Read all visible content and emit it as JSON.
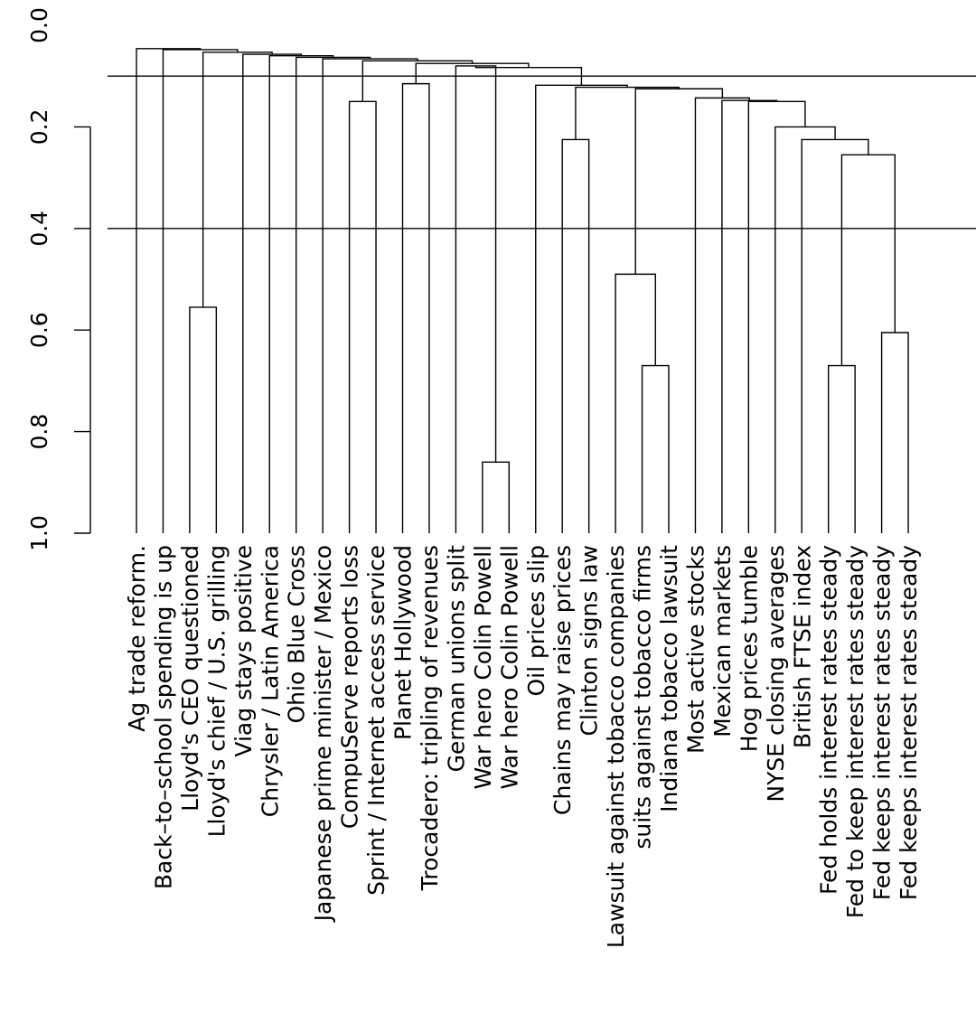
{
  "chart_data": {
    "type": "dendrogram",
    "title": "",
    "xlabel": "",
    "ylabel": "",
    "ylim": [
      0.0,
      1.0
    ],
    "y_inverted": true,
    "yticks": [
      0.0,
      0.2,
      0.4,
      0.6,
      0.8,
      1.0
    ],
    "ytick_labels": [
      "0.0",
      "0.2",
      "0.4",
      "0.6",
      "0.8",
      "1.0"
    ],
    "reference_lines": [
      0.1,
      0.4
    ],
    "leaves": [
      "Ag trade reform.",
      "Back–to–school spending is up",
      "Lloyd's CEO questioned",
      "Lloyd's chief / U.S. grilling",
      "Viag stays positive",
      "Chrysler / Latin America",
      "Ohio Blue Cross",
      "Japanese prime minister / Mexico",
      "CompuServe reports loss",
      "Sprint / Internet access service",
      "Planet Hollywood",
      "Trocadero: tripling of revenues",
      "German unions split",
      "War hero Colin Powell",
      "War hero Colin Powell",
      "Oil prices slip",
      "Chains may raise prices",
      "Clinton signs law",
      "Lawsuit against tobacco companies",
      "suits against tobacco firms",
      "Indiana tobacco lawsuit",
      "Most active stocks",
      "Mexican markets",
      "Hog prices tumble",
      "NYSE closing averages",
      "British FTSE index",
      "Fed holds interest rates steady",
      "Fed to keep interest rates steady",
      "Fed keeps interest rates steady",
      "Fed keeps interest rates steady"
    ],
    "merges": [
      {
        "id": "m1",
        "left": 2,
        "right": 3,
        "height": 0.555
      },
      {
        "id": "m2",
        "left": 13,
        "right": 14,
        "height": 0.86
      },
      {
        "id": "m3",
        "left": 19,
        "right": 20,
        "height": 0.67
      },
      {
        "id": "m4",
        "left": 18,
        "right": "m3",
        "height": 0.49
      },
      {
        "id": "m5",
        "left": 26,
        "right": 27,
        "height": 0.67
      },
      {
        "id": "m6",
        "left": 28,
        "right": 29,
        "height": 0.605
      },
      {
        "id": "m7",
        "left": 8,
        "right": 9,
        "height": 0.15
      },
      {
        "id": "m8",
        "left": 10,
        "right": 11,
        "height": 0.115
      },
      {
        "id": "m9",
        "left": 16,
        "right": 17,
        "height": 0.225
      },
      {
        "id": "m10",
        "left": "m5",
        "right": "m6",
        "height": 0.255
      },
      {
        "id": "m11",
        "left": 25,
        "right": "m10",
        "height": 0.225
      },
      {
        "id": "m12",
        "left": 24,
        "right": "m11",
        "height": 0.2
      },
      {
        "id": "m13",
        "left": 23,
        "right": "m12",
        "height": 0.15
      },
      {
        "id": "m14",
        "left": 22,
        "right": "m13",
        "height": 0.148
      },
      {
        "id": "m15",
        "left": 21,
        "right": "m14",
        "height": 0.143
      },
      {
        "id": "m16",
        "left": "m4",
        "right": "m15",
        "height": 0.125
      },
      {
        "id": "m17",
        "left": "m9",
        "right": "m16",
        "height": 0.122
      },
      {
        "id": "m18",
        "left": 15,
        "right": "m17",
        "height": 0.118
      },
      {
        "id": "m19",
        "left": 12,
        "right": "m2",
        "height": 0.08
      },
      {
        "id": "m20",
        "left": "m19",
        "right": "m18",
        "height": 0.083
      },
      {
        "id": "m21",
        "left": "m8",
        "right": "m20",
        "height": 0.075
      },
      {
        "id": "m22",
        "left": "m7",
        "right": "m21",
        "height": 0.07
      },
      {
        "id": "m23",
        "left": 7,
        "right": "m22",
        "height": 0.066
      },
      {
        "id": "m24",
        "left": 6,
        "right": "m23",
        "height": 0.063
      },
      {
        "id": "m25",
        "left": 5,
        "right": "m24",
        "height": 0.06
      },
      {
        "id": "m26",
        "left": 4,
        "right": "m25",
        "height": 0.057
      },
      {
        "id": "m27",
        "left": "m1",
        "right": "m26",
        "height": 0.053
      },
      {
        "id": "m28",
        "left": 1,
        "right": "m27",
        "height": 0.048
      },
      {
        "id": "m29",
        "left": 0,
        "right": "m28",
        "height": 0.046
      }
    ]
  }
}
